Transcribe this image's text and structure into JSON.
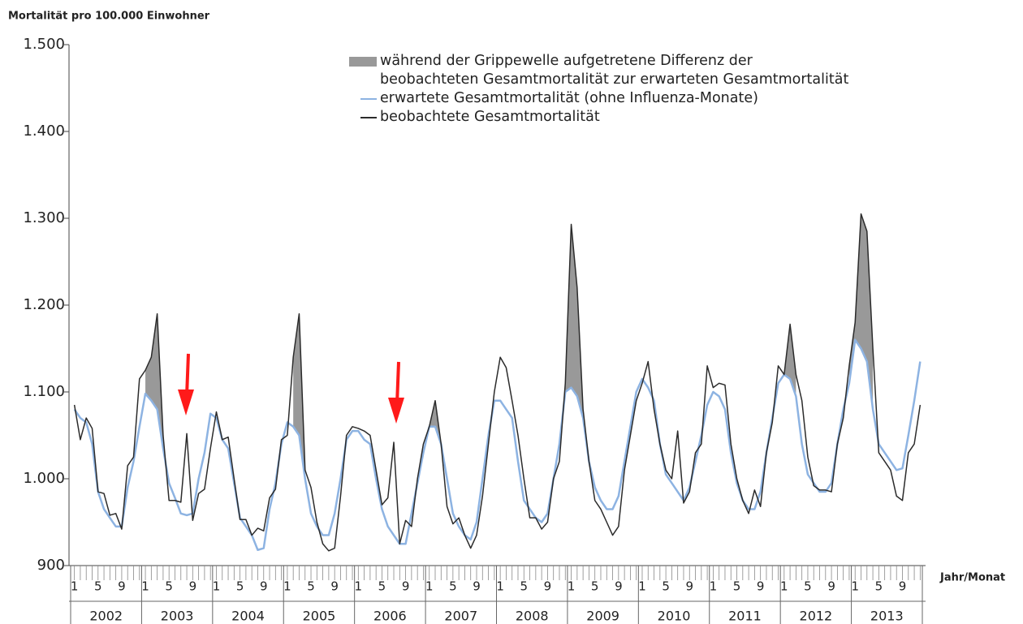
{
  "chart_data": {
    "type": "line",
    "y_label": "Mortalität pro 100.000 Einwohner",
    "x_label": "Jahr/Monat",
    "categories": [
      "1",
      null,
      null,
      null,
      "5",
      null,
      null,
      null,
      "9",
      null,
      null,
      null,
      "1",
      null,
      null,
      null,
      "5",
      null,
      null,
      null,
      "9",
      null,
      null,
      null,
      "1",
      null,
      null,
      null,
      "5",
      null,
      null,
      null,
      "9",
      null,
      null,
      null,
      "1",
      null,
      null,
      null,
      "5",
      null,
      null,
      null,
      "9",
      null,
      null,
      null,
      "1",
      null,
      null,
      null,
      "5",
      null,
      null,
      null,
      "9",
      null,
      null,
      null,
      "1",
      null,
      null,
      null,
      "5",
      null,
      null,
      null,
      "9",
      null,
      null,
      null,
      "1",
      null,
      null,
      null,
      "5",
      null,
      null,
      null,
      "9",
      null,
      null,
      null,
      "1",
      null,
      null,
      null,
      "5",
      null,
      null,
      null,
      "9",
      null,
      null,
      null,
      "1",
      null,
      null,
      null,
      "5",
      null,
      null,
      null,
      "9",
      null,
      null,
      null,
      "1",
      null,
      null,
      null,
      "5",
      null,
      null,
      null,
      "9",
      null,
      null,
      null,
      "1",
      null,
      null,
      null,
      "5",
      null,
      null,
      null,
      "9",
      null,
      null,
      null,
      "1",
      null,
      null,
      null,
      "5",
      null,
      null,
      null,
      "9",
      null,
      null,
      null
    ],
    "years": [
      "2002",
      "2003",
      "2004",
      "2005",
      "2006",
      "2007",
      "2008",
      "2009",
      "2010",
      "2011",
      "2012",
      "2013"
    ],
    "ylim": [
      900,
      1500
    ],
    "yticks": [
      900,
      {
        "value": 1000,
        "label": "1.000"
      },
      {
        "value": 1100,
        "label": "1.100"
      },
      {
        "value": 1200,
        "label": "1.200"
      },
      {
        "value": 1300,
        "label": "1.300"
      },
      {
        "value": 1400,
        "label": "1.400"
      },
      {
        "value": 1500,
        "label": "1.500"
      }
    ],
    "series": [
      {
        "name": "während der Grippewelle aufgetretene Differenz der\nbeobachteten Gesamtmortalität zur erwarteten Gesamtmortalität",
        "color": "#999999",
        "type": "area",
        "values": [
          null,
          null,
          null,
          null,
          null,
          null,
          null,
          null,
          null,
          null,
          null,
          null,
          27,
          50,
          110,
          15,
          null,
          null,
          null,
          null,
          null,
          null,
          null,
          null,
          null,
          null,
          null,
          null,
          null,
          null,
          null,
          null,
          null,
          null,
          null,
          null,
          null,
          80,
          140,
          10,
          null,
          null,
          null,
          null,
          null,
          null,
          null,
          null,
          null,
          null,
          null,
          null,
          null,
          null,
          null,
          null,
          null,
          null,
          null,
          null,
          0,
          30,
          0,
          null,
          null,
          null,
          null,
          null,
          null,
          null,
          null,
          null,
          null,
          null,
          null,
          null,
          null,
          null,
          null,
          null,
          null,
          null,
          null,
          10,
          188,
          125,
          10,
          null,
          null,
          null,
          null,
          null,
          null,
          null,
          null,
          null,
          null,
          null,
          null,
          null,
          null,
          null,
          null,
          null,
          null,
          null,
          null,
          null,
          null,
          null,
          null,
          null,
          null,
          null,
          null,
          null,
          null,
          null,
          null,
          null,
          0,
          63,
          25,
          null,
          null,
          null,
          null,
          null,
          null,
          null,
          null,
          20,
          20,
          155,
          150,
          70,
          null,
          null,
          null,
          null,
          null,
          null,
          null,
          null
        ]
      },
      {
        "name": "erwartete Gesamtmortalität (ohne Influenza-Monate)",
        "color": "#8db3e2",
        "type": "line",
        "values": [
          1080,
          1070,
          1065,
          1040,
          985,
          965,
          955,
          945,
          945,
          990,
          1020,
          1060,
          1098,
          1090,
          1080,
          1035,
          995,
          978,
          960,
          958,
          960,
          1000,
          1030,
          1075,
          1070,
          1045,
          1035,
          995,
          955,
          945,
          935,
          918,
          920,
          965,
          995,
          1040,
          1065,
          1060,
          1050,
          1000,
          960,
          945,
          935,
          935,
          960,
          1000,
          1045,
          1055,
          1055,
          1045,
          1040,
          1000,
          965,
          945,
          935,
          925,
          925,
          960,
          995,
          1030,
          1060,
          1060,
          1040,
          1000,
          960,
          945,
          935,
          930,
          950,
          1000,
          1050,
          1090,
          1090,
          1080,
          1070,
          1020,
          975,
          965,
          955,
          950,
          960,
          1000,
          1040,
          1100,
          1105,
          1095,
          1070,
          1020,
          990,
          975,
          965,
          965,
          980,
          1020,
          1060,
          1100,
          1115,
          1105,
          1090,
          1040,
          1005,
          995,
          985,
          975,
          990,
          1020,
          1050,
          1085,
          1100,
          1095,
          1080,
          1030,
          995,
          975,
          965,
          965,
          985,
          1030,
          1070,
          1110,
          1120,
          1115,
          1095,
          1040,
          1005,
          995,
          985,
          985,
          995,
          1040,
          1080,
          1110,
          1160,
          1150,
          1135,
          1080,
          1040,
          1030,
          1020,
          1010,
          1012,
          1050,
          1090,
          1135
        ]
      },
      {
        "name": "beobachtete Gesamtmortalität",
        "color": "#2b2b2b",
        "type": "line",
        "values": [
          1085,
          1045,
          1070,
          1058,
          985,
          983,
          958,
          960,
          942,
          1015,
          1025,
          1115,
          1125,
          1140,
          1190,
          1050,
          975,
          975,
          973,
          1052,
          952,
          983,
          988,
          1035,
          1077,
          1045,
          1048,
          1000,
          953,
          953,
          935,
          943,
          940,
          978,
          988,
          1045,
          1050,
          1140,
          1190,
          1010,
          990,
          950,
          925,
          917,
          920,
          980,
          1050,
          1060,
          1058,
          1055,
          1050,
          1010,
          970,
          978,
          1042,
          925,
          952,
          945,
          1000,
          1040,
          1060,
          1090,
          1040,
          968,
          948,
          955,
          935,
          920,
          935,
          980,
          1040,
          1100,
          1140,
          1128,
          1090,
          1050,
          1000,
          955,
          955,
          942,
          950,
          1000,
          1020,
          1110,
          1293,
          1220,
          1080,
          1020,
          975,
          965,
          950,
          935,
          945,
          1010,
          1050,
          1090,
          1110,
          1135,
          1080,
          1040,
          1010,
          1000,
          1055,
          972,
          985,
          1030,
          1040,
          1130,
          1105,
          1110,
          1108,
          1040,
          1000,
          975,
          960,
          987,
          968,
          1030,
          1065,
          1130,
          1120,
          1178,
          1120,
          1090,
          1025,
          992,
          987,
          987,
          985,
          1040,
          1070,
          1130,
          1180,
          1305,
          1285,
          1150,
          1030,
          1020,
          1010,
          980,
          975,
          1030,
          1040,
          1085
        ]
      }
    ]
  }
}
